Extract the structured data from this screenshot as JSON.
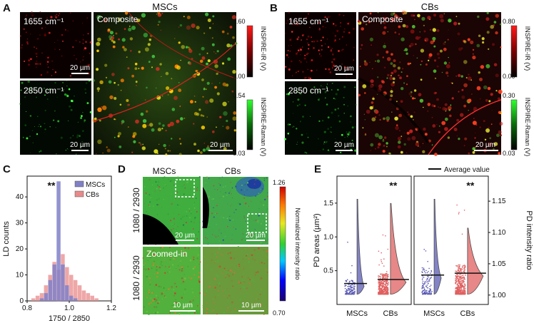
{
  "panels": {
    "A": {
      "label": "A",
      "title": "MSCs",
      "small_top": "1655 cm⁻¹",
      "small_bottom": "2850 cm⁻¹",
      "composite": "Composite",
      "scalebar": "20 µm",
      "ir_colorbar": {
        "max": "0.60",
        "min": "0.00",
        "label": "INSPIRE-IR (V)"
      },
      "raman_colorbar": {
        "max": "0.54",
        "min": "0.03",
        "label": "INSPIRE-Raman (V)"
      }
    },
    "B": {
      "label": "B",
      "title": "CBs",
      "small_top": "1655 cm⁻¹",
      "small_bottom": "2850 cm⁻¹",
      "composite": "Composite",
      "scalebar": "20 µm",
      "ir_colorbar": {
        "max": "0.80",
        "min": "0.00",
        "label": "INSPIRE-IR (V)"
      },
      "raman_colorbar": {
        "max": "0.30",
        "min": "0.03",
        "label": "INSPIRE-Raman (V)"
      }
    },
    "C": {
      "label": "C",
      "significance": "**",
      "chart_data": {
        "type": "bar",
        "xlabel": "1750 / 2850",
        "ylabel": "LD counts",
        "xlim": [
          0.8,
          1.2
        ],
        "ylim": [
          0,
          48
        ],
        "xticks": [
          "0.8",
          "1.0",
          "1.2"
        ],
        "yticks": [
          "0",
          "10",
          "20",
          "30",
          "40"
        ],
        "legend_position": "top-right",
        "bin_edges": [
          0.82,
          0.84,
          0.86,
          0.88,
          0.9,
          0.92,
          0.94,
          0.96,
          0.98,
          1.0,
          1.02,
          1.04,
          1.06,
          1.08,
          1.1,
          1.12,
          1.14
        ],
        "series": [
          {
            "name": "MSCs",
            "color": "#8080c8",
            "values": [
              0,
              0,
              1,
              3,
              8,
              14,
              46,
              14,
              6,
              2,
              1,
              0,
              0,
              0,
              0,
              0
            ]
          },
          {
            "name": "CBs",
            "color": "#e88a8a",
            "values": [
              1,
              2,
              3,
              6,
              10,
              15,
              12,
              18,
              13,
              10,
              8,
              6,
              4,
              3,
              2,
              1
            ]
          }
        ]
      }
    },
    "D": {
      "label": "D",
      "col_left": "MSCs",
      "col_right": "CBs",
      "row_label": "1080 / 2930",
      "zoomed": "Zoomed-in",
      "scalebar_top": "20 µm",
      "scalebar_bottom": "10 µm",
      "colorbar": {
        "max": "1.26",
        "min": "0.70",
        "label": "Normalized intensity ratio"
      }
    },
    "E": {
      "label": "E",
      "legend": "Average value",
      "left_plot": {
        "ylabel": "PD areas (µm²)",
        "yticks": [
          "0.5",
          "1.0",
          "1.5"
        ],
        "ylim": [
          0,
          1.9
        ],
        "categories": [
          "MSCs",
          "CBs"
        ],
        "averages": [
          0.31,
          0.37
        ],
        "significance": "**",
        "colors": [
          "#5a5ab4",
          "#e06060"
        ]
      },
      "right_plot": {
        "ylabel": "PD intensity ratio",
        "yticks": [
          "1.00",
          "1.05",
          "1.10",
          "1.15"
        ],
        "ylim": [
          0.985,
          1.19
        ],
        "categories": [
          "MSCs",
          "CBs"
        ],
        "averages": [
          1.032,
          1.035
        ],
        "significance": "**",
        "colors": [
          "#5a5ab4",
          "#e06060"
        ]
      }
    }
  }
}
